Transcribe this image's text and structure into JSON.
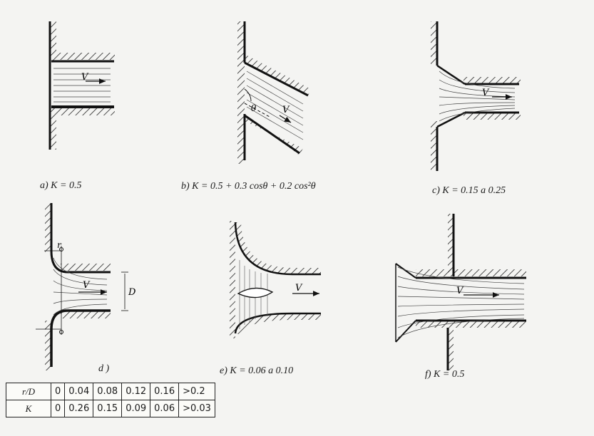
{
  "captions": {
    "a": "a)  K = 0.5",
    "b": "b)  K = 0.5 + 0.3 cosθ + 0.2 cos²θ",
    "c": "c)  K = 0.15 a 0.25",
    "d": "d )",
    "e": "e)  K = 0.06 a 0.10",
    "f": "f)  K = 0.5"
  },
  "labels": {
    "velocity": "V",
    "angle": "θ",
    "radius": "r",
    "diameter": "D"
  },
  "table": {
    "header_r": "r/D",
    "header_k": "K",
    "r_values": [
      "0",
      "0.04",
      "0.08",
      "0.12",
      "0.16",
      ">0.2"
    ],
    "k_values": [
      "0",
      "0.26",
      "0.15",
      "0.09",
      "0.06",
      ">0.03"
    ]
  }
}
